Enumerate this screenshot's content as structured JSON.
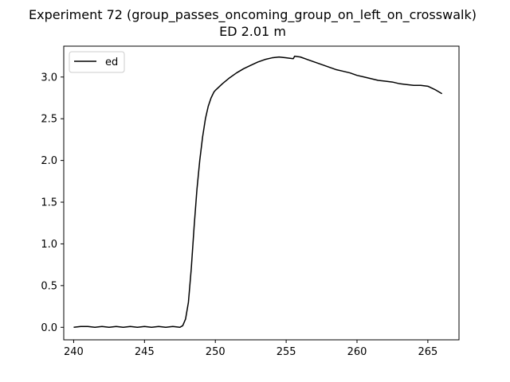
{
  "chart_data": {
    "type": "line",
    "title": "Experiment 72 (group_passes_oncoming_group_on_left_on_crosswalk)",
    "subtitle": "ED 2.01 m",
    "xlabel": "",
    "ylabel": "",
    "xlim": [
      239.3,
      267.2
    ],
    "ylim": [
      -0.15,
      3.37
    ],
    "xticks": [
      240,
      245,
      250,
      255,
      260,
      265
    ],
    "yticks": [
      0.0,
      0.5,
      1.0,
      1.5,
      2.0,
      2.5,
      3.0
    ],
    "ytick_labels": [
      "0.0",
      "0.5",
      "1.0",
      "1.5",
      "2.0",
      "2.5",
      "3.0"
    ],
    "grid": false,
    "legend_position": "top-left",
    "series": [
      {
        "name": "ed",
        "color": "#000000",
        "x": [
          240.0,
          240.5,
          241.0,
          241.5,
          242.0,
          242.5,
          243.0,
          243.5,
          244.0,
          244.5,
          245.0,
          245.5,
          246.0,
          246.5,
          247.0,
          247.5,
          247.7,
          247.9,
          248.1,
          248.3,
          248.5,
          248.7,
          248.9,
          249.1,
          249.3,
          249.5,
          249.7,
          249.9,
          250.0,
          250.5,
          251.0,
          251.5,
          252.0,
          252.5,
          253.0,
          253.5,
          254.0,
          254.5,
          255.0,
          255.5,
          255.6,
          256.0,
          256.5,
          257.0,
          257.5,
          258.0,
          258.5,
          259.0,
          259.5,
          260.0,
          260.5,
          261.0,
          261.5,
          262.0,
          262.5,
          263.0,
          263.5,
          264.0,
          264.5,
          265.0,
          265.5,
          266.0
        ],
        "y": [
          0.0,
          0.01,
          0.01,
          0.0,
          0.01,
          0.0,
          0.01,
          0.0,
          0.01,
          0.0,
          0.01,
          0.0,
          0.01,
          0.0,
          0.01,
          0.0,
          0.02,
          0.1,
          0.3,
          0.7,
          1.2,
          1.65,
          2.0,
          2.28,
          2.5,
          2.65,
          2.75,
          2.82,
          2.84,
          2.92,
          2.99,
          3.05,
          3.1,
          3.14,
          3.18,
          3.21,
          3.23,
          3.24,
          3.23,
          3.22,
          3.25,
          3.24,
          3.21,
          3.18,
          3.15,
          3.12,
          3.09,
          3.07,
          3.05,
          3.02,
          3.0,
          2.98,
          2.96,
          2.95,
          2.94,
          2.92,
          2.91,
          2.9,
          2.9,
          2.89,
          2.85,
          2.8
        ]
      }
    ]
  }
}
